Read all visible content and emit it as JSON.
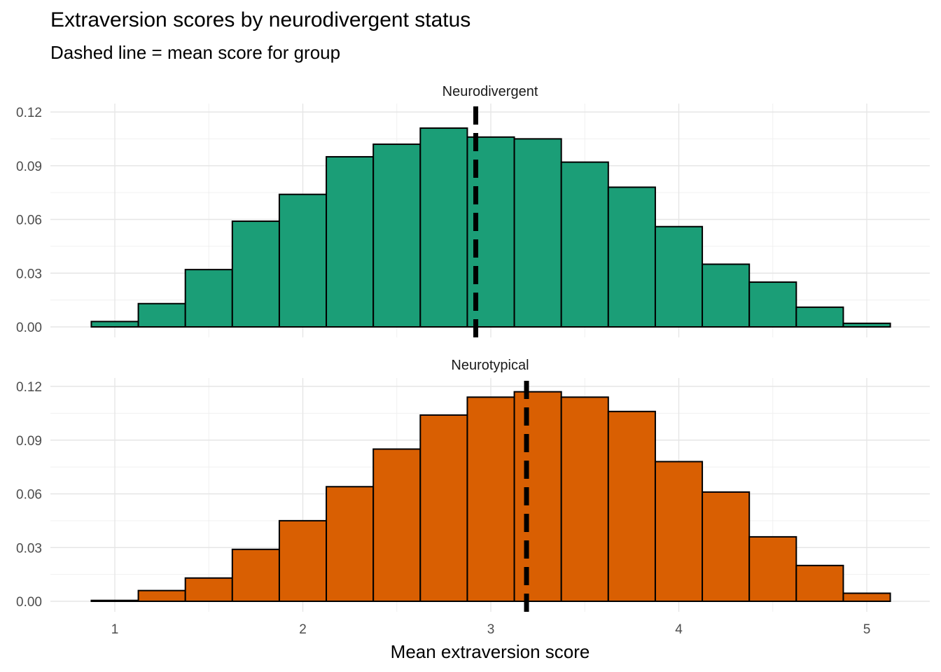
{
  "chart_data": {
    "type": "bar",
    "title": "Extraversion scores by neurodivergent status",
    "subtitle": "Dashed line = mean score for group",
    "xlabel": "Mean extraversion score",
    "ylabel": "",
    "xlim": [
      0.7,
      5.3
    ],
    "ylim": [
      0,
      0.12
    ],
    "x_ticks": [
      1,
      2,
      3,
      4,
      5
    ],
    "y_ticks": [
      0.0,
      0.03,
      0.06,
      0.09,
      0.12
    ],
    "y_tick_labels": [
      "0.00",
      "0.03",
      "0.06",
      "0.09",
      "0.12"
    ],
    "bin_edges": [
      0.875,
      1.125,
      1.375,
      1.625,
      1.875,
      2.125,
      2.375,
      2.625,
      2.875,
      3.125,
      3.375,
      3.625,
      3.875,
      4.125,
      4.375,
      4.625,
      4.875,
      5.125
    ],
    "grid": true,
    "legend": "none",
    "panels": [
      {
        "name": "Neurodivergent",
        "color": "#1b9e77",
        "values": [
          0.003,
          0.013,
          0.032,
          0.059,
          0.074,
          0.095,
          0.102,
          0.111,
          0.106,
          0.105,
          0.092,
          0.078,
          0.056,
          0.035,
          0.025,
          0.011,
          0.002
        ],
        "mean": 2.92
      },
      {
        "name": "Neurotypical",
        "color": "#d95f02",
        "values": [
          0.0005,
          0.006,
          0.013,
          0.029,
          0.045,
          0.064,
          0.085,
          0.104,
          0.114,
          0.117,
          0.114,
          0.106,
          0.078,
          0.061,
          0.036,
          0.02,
          0.0045
        ],
        "mean": 3.19
      }
    ]
  }
}
